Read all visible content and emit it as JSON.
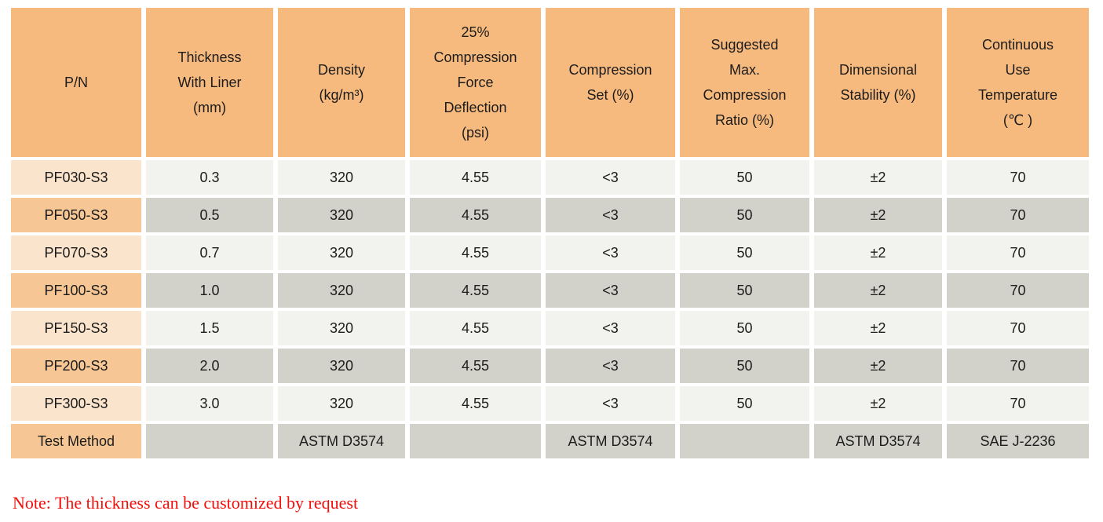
{
  "table": {
    "columns": [
      {
        "label": "P/N"
      },
      {
        "label": "Thickness\nWith Liner\n(mm)"
      },
      {
        "label": "Density\n(kg/m³)"
      },
      {
        "label": "25%\nCompression\nForce\nDeflection\n(psi)"
      },
      {
        "label": "Compression\nSet (%)"
      },
      {
        "label": "Suggested\nMax.\nCompression\nRatio (%)"
      },
      {
        "label": "Dimensional\nStability (%)"
      },
      {
        "label": "Continuous\nUse\nTemperature\n(℃ )"
      }
    ],
    "rows": [
      {
        "kind": "data",
        "cells": [
          "PF030-S3",
          "0.3",
          "320",
          "4.55",
          "<3",
          "50",
          "±2",
          "70"
        ]
      },
      {
        "kind": "data",
        "cells": [
          "PF050-S3",
          "0.5",
          "320",
          "4.55",
          "<3",
          "50",
          "±2",
          "70"
        ]
      },
      {
        "kind": "data",
        "cells": [
          "PF070-S3",
          "0.7",
          "320",
          "4.55",
          "<3",
          "50",
          "±2",
          "70"
        ]
      },
      {
        "kind": "data",
        "cells": [
          "PF100-S3",
          "1.0",
          "320",
          "4.55",
          "<3",
          "50",
          "±2",
          "70"
        ]
      },
      {
        "kind": "data",
        "cells": [
          "PF150-S3",
          "1.5",
          "320",
          "4.55",
          "<3",
          "50",
          "±2",
          "70"
        ]
      },
      {
        "kind": "data",
        "cells": [
          "PF200-S3",
          "2.0",
          "320",
          "4.55",
          "<3",
          "50",
          "±2",
          "70"
        ]
      },
      {
        "kind": "data",
        "cells": [
          "PF300-S3",
          "3.0",
          "320",
          "4.55",
          "<3",
          "50",
          "±2",
          "70"
        ]
      },
      {
        "kind": "test",
        "cells": [
          "Test Method",
          "",
          "ASTM D3574",
          "",
          "ASTM D3574",
          "",
          "ASTM D3574",
          "SAE J-2236"
        ]
      }
    ]
  },
  "note": {
    "text": "Note: The thickness can be customized by request"
  },
  "colors": {
    "header_bg": "#F7BA7E",
    "pn_light": "#FBE4CC",
    "pn_dark": "#F6C795",
    "cell_light": "#F2F2EE",
    "cell_dark": "#D2D2CB",
    "text": "#1C1C1C",
    "note_red": "#F2100C"
  }
}
